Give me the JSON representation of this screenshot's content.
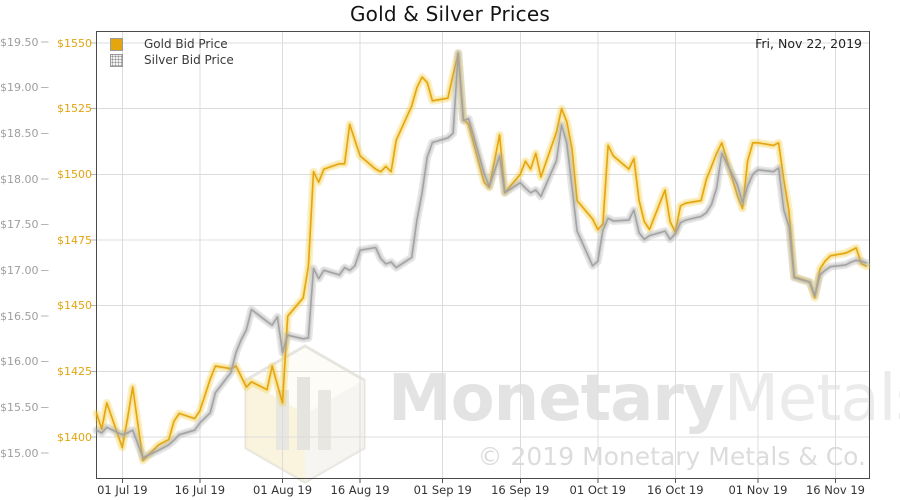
{
  "title": "Gold & Silver Prices",
  "annotation": "Fri, Nov 22, 2019",
  "legend": [
    {
      "label": "Gold Bid Price",
      "color": "#e3a60c",
      "swatch": "solid-gold"
    },
    {
      "label": "Silver Bid Price",
      "color": "#a3a3a3",
      "swatch": "gray-halftone"
    }
  ],
  "watermark": {
    "brand_bold": "Monetary",
    "brand_light": "Metals",
    "registered": "®",
    "copyright": "© 2019 Monetary Metals & Co."
  },
  "colors": {
    "gold_line": "#e5a50f",
    "gold_glow": "rgba(243,205,70,0.30)",
    "silver_line": "#a3a3a3",
    "silver_glow": "rgba(170,170,170,0.28)",
    "grid": "#dcdcdc",
    "border": "#4a4a4a",
    "tick": "#b5b5b5"
  },
  "chart_data": {
    "type": "line",
    "title": "Gold & Silver Prices",
    "grid": true,
    "legend_position": "top-left",
    "x_range": [
      "2019-06-26",
      "2019-11-22"
    ],
    "x_ticks": [
      {
        "date": "2019-07-01",
        "label": "01 Jul 19"
      },
      {
        "date": "2019-07-16",
        "label": "16 Jul 19"
      },
      {
        "date": "2019-08-01",
        "label": "01 Aug 19"
      },
      {
        "date": "2019-08-16",
        "label": "16 Aug 19"
      },
      {
        "date": "2019-09-01",
        "label": "01 Sep 19"
      },
      {
        "date": "2019-09-16",
        "label": "16 Sep 19"
      },
      {
        "date": "2019-10-01",
        "label": "01 Oct 19"
      },
      {
        "date": "2019-10-16",
        "label": "16 Oct 19"
      },
      {
        "date": "2019-11-01",
        "label": "01 Nov 19"
      },
      {
        "date": "2019-11-16",
        "label": "16 Nov 19"
      }
    ],
    "gold_axis": {
      "side": "left-inner",
      "range": [
        1394,
        1553
      ],
      "ticks": [
        {
          "v": 1550,
          "label": "$1550"
        },
        {
          "v": 1525,
          "label": "$1525"
        },
        {
          "v": 1500,
          "label": "$1500"
        },
        {
          "v": 1475,
          "label": "$1475"
        },
        {
          "v": 1450,
          "label": "$1450"
        },
        {
          "v": 1425,
          "label": "$1425"
        },
        {
          "v": 1400,
          "label": "$1400"
        }
      ]
    },
    "silver_axis": {
      "side": "left-outer",
      "range": [
        14.88,
        19.55
      ],
      "ticks": [
        {
          "v": 19.5,
          "label": "$19.50"
        },
        {
          "v": 19.0,
          "label": "$19.00"
        },
        {
          "v": 18.5,
          "label": "$18.50"
        },
        {
          "v": 18.0,
          "label": "$18.00"
        },
        {
          "v": 17.5,
          "label": "$17.50"
        },
        {
          "v": 17.0,
          "label": "$17.00"
        },
        {
          "v": 16.5,
          "label": "$16.50"
        },
        {
          "v": 16.0,
          "label": "$16.00"
        },
        {
          "v": 15.5,
          "label": "$15.50"
        },
        {
          "v": 15.0,
          "label": "$15.00"
        }
      ]
    },
    "series": [
      {
        "name": "Gold Bid Price",
        "axis": "gold",
        "points": [
          [
            "2019-06-26",
            1409
          ],
          [
            "2019-06-27",
            1403
          ],
          [
            "2019-06-28",
            1413
          ],
          [
            "2019-07-01",
            1396
          ],
          [
            "2019-07-02",
            1407
          ],
          [
            "2019-07-03",
            1419
          ],
          [
            "2019-07-05",
            1391
          ],
          [
            "2019-07-08",
            1397
          ],
          [
            "2019-07-10",
            1399
          ],
          [
            "2019-07-11",
            1406
          ],
          [
            "2019-07-12",
            1409
          ],
          [
            "2019-07-15",
            1407
          ],
          [
            "2019-07-16",
            1410
          ],
          [
            "2019-07-18",
            1422
          ],
          [
            "2019-07-19",
            1427
          ],
          [
            "2019-07-22",
            1426
          ],
          [
            "2019-07-23",
            1427
          ],
          [
            "2019-07-25",
            1419
          ],
          [
            "2019-07-26",
            1421
          ],
          [
            "2019-07-29",
            1418
          ],
          [
            "2019-07-30",
            1427
          ],
          [
            "2019-08-01",
            1413
          ],
          [
            "2019-08-02",
            1446
          ],
          [
            "2019-08-05",
            1453
          ],
          [
            "2019-08-06",
            1465
          ],
          [
            "2019-08-07",
            1501
          ],
          [
            "2019-08-08",
            1497
          ],
          [
            "2019-08-09",
            1502
          ],
          [
            "2019-08-12",
            1504
          ],
          [
            "2019-08-13",
            1504
          ],
          [
            "2019-08-14",
            1519
          ],
          [
            "2019-08-15",
            1513
          ],
          [
            "2019-08-16",
            1507
          ],
          [
            "2019-08-19",
            1502
          ],
          [
            "2019-08-20",
            1501
          ],
          [
            "2019-08-21",
            1503
          ],
          [
            "2019-08-22",
            1501
          ],
          [
            "2019-08-23",
            1513
          ],
          [
            "2019-08-26",
            1526
          ],
          [
            "2019-08-27",
            1533
          ],
          [
            "2019-08-28",
            1537
          ],
          [
            "2019-08-29",
            1535
          ],
          [
            "2019-08-30",
            1528
          ],
          [
            "2019-09-02",
            1529
          ],
          [
            "2019-09-03",
            1538
          ],
          [
            "2019-09-04",
            1546
          ],
          [
            "2019-09-05",
            1521
          ],
          [
            "2019-09-06",
            1519
          ],
          [
            "2019-09-09",
            1497
          ],
          [
            "2019-09-10",
            1495
          ],
          [
            "2019-09-12",
            1515
          ],
          [
            "2019-09-13",
            1493
          ],
          [
            "2019-09-16",
            1500
          ],
          [
            "2019-09-17",
            1505
          ],
          [
            "2019-09-18",
            1502
          ],
          [
            "2019-09-19",
            1508
          ],
          [
            "2019-09-20",
            1499
          ],
          [
            "2019-09-23",
            1516
          ],
          [
            "2019-09-24",
            1525
          ],
          [
            "2019-09-25",
            1520
          ],
          [
            "2019-09-26",
            1510
          ],
          [
            "2019-09-27",
            1490
          ],
          [
            "2019-09-30",
            1483
          ],
          [
            "2019-10-01",
            1479
          ],
          [
            "2019-10-02",
            1481
          ],
          [
            "2019-10-03",
            1511
          ],
          [
            "2019-10-04",
            1507
          ],
          [
            "2019-10-07",
            1502
          ],
          [
            "2019-10-08",
            1506
          ],
          [
            "2019-10-09",
            1490
          ],
          [
            "2019-10-10",
            1482
          ],
          [
            "2019-10-11",
            1479
          ],
          [
            "2019-10-14",
            1494
          ],
          [
            "2019-10-15",
            1482
          ],
          [
            "2019-10-16",
            1478
          ],
          [
            "2019-10-17",
            1488
          ],
          [
            "2019-10-18",
            1489
          ],
          [
            "2019-10-21",
            1490
          ],
          [
            "2019-10-22",
            1498
          ],
          [
            "2019-10-23",
            1503
          ],
          [
            "2019-10-24",
            1508
          ],
          [
            "2019-10-25",
            1512
          ],
          [
            "2019-10-28",
            1492
          ],
          [
            "2019-10-29",
            1487
          ],
          [
            "2019-10-30",
            1505
          ],
          [
            "2019-10-31",
            1512
          ],
          [
            "2019-11-01",
            1512
          ],
          [
            "2019-11-04",
            1511
          ],
          [
            "2019-11-05",
            1512
          ],
          [
            "2019-11-06",
            1498
          ],
          [
            "2019-11-07",
            1486
          ],
          [
            "2019-11-08",
            1461
          ],
          [
            "2019-11-11",
            1459
          ],
          [
            "2019-11-12",
            1453
          ],
          [
            "2019-11-13",
            1464
          ],
          [
            "2019-11-14",
            1467
          ],
          [
            "2019-11-15",
            1469
          ],
          [
            "2019-11-18",
            1470
          ],
          [
            "2019-11-19",
            1471
          ],
          [
            "2019-11-20",
            1472
          ],
          [
            "2019-11-21",
            1466
          ],
          [
            "2019-11-22",
            1465
          ]
        ]
      },
      {
        "name": "Silver Bid Price",
        "axis": "silver",
        "points": [
          [
            "2019-06-26",
            15.25
          ],
          [
            "2019-06-27",
            15.22
          ],
          [
            "2019-06-28",
            15.28
          ],
          [
            "2019-07-01",
            15.2
          ],
          [
            "2019-07-02",
            15.22
          ],
          [
            "2019-07-03",
            15.25
          ],
          [
            "2019-07-05",
            14.95
          ],
          [
            "2019-07-08",
            15.03
          ],
          [
            "2019-07-10",
            15.09
          ],
          [
            "2019-07-11",
            15.14
          ],
          [
            "2019-07-12",
            15.2
          ],
          [
            "2019-07-15",
            15.25
          ],
          [
            "2019-07-16",
            15.33
          ],
          [
            "2019-07-18",
            15.44
          ],
          [
            "2019-07-19",
            15.66
          ],
          [
            "2019-07-22",
            15.88
          ],
          [
            "2019-07-23",
            16.1
          ],
          [
            "2019-07-24",
            16.24
          ],
          [
            "2019-07-25",
            16.35
          ],
          [
            "2019-07-26",
            16.57
          ],
          [
            "2019-07-29",
            16.44
          ],
          [
            "2019-07-30",
            16.4
          ],
          [
            "2019-07-31",
            16.49
          ],
          [
            "2019-08-01",
            16.1
          ],
          [
            "2019-08-02",
            16.29
          ],
          [
            "2019-08-05",
            16.25
          ],
          [
            "2019-08-06",
            16.26
          ],
          [
            "2019-08-07",
            17.02
          ],
          [
            "2019-08-08",
            16.91
          ],
          [
            "2019-08-09",
            17.0
          ],
          [
            "2019-08-12",
            16.95
          ],
          [
            "2019-08-13",
            17.03
          ],
          [
            "2019-08-14",
            17.0
          ],
          [
            "2019-08-15",
            17.05
          ],
          [
            "2019-08-16",
            17.22
          ],
          [
            "2019-08-19",
            17.25
          ],
          [
            "2019-08-20",
            17.13
          ],
          [
            "2019-08-21",
            17.07
          ],
          [
            "2019-08-22",
            17.09
          ],
          [
            "2019-08-23",
            17.03
          ],
          [
            "2019-08-26",
            17.14
          ],
          [
            "2019-08-27",
            17.55
          ],
          [
            "2019-08-28",
            17.85
          ],
          [
            "2019-08-29",
            18.24
          ],
          [
            "2019-08-30",
            18.4
          ],
          [
            "2019-09-02",
            18.45
          ],
          [
            "2019-09-03",
            18.5
          ],
          [
            "2019-09-04",
            19.38
          ],
          [
            "2019-09-05",
            18.64
          ],
          [
            "2019-09-06",
            18.66
          ],
          [
            "2019-09-09",
            18.06
          ],
          [
            "2019-09-10",
            17.92
          ],
          [
            "2019-09-12",
            18.25
          ],
          [
            "2019-09-13",
            17.85
          ],
          [
            "2019-09-16",
            17.96
          ],
          [
            "2019-09-17",
            17.9
          ],
          [
            "2019-09-18",
            17.85
          ],
          [
            "2019-09-19",
            17.88
          ],
          [
            "2019-09-20",
            17.81
          ],
          [
            "2019-09-23",
            18.2
          ],
          [
            "2019-09-24",
            18.59
          ],
          [
            "2019-09-25",
            18.39
          ],
          [
            "2019-09-26",
            17.92
          ],
          [
            "2019-09-27",
            17.43
          ],
          [
            "2019-09-30",
            17.05
          ],
          [
            "2019-10-01",
            17.1
          ],
          [
            "2019-10-02",
            17.44
          ],
          [
            "2019-10-03",
            17.57
          ],
          [
            "2019-10-04",
            17.54
          ],
          [
            "2019-10-07",
            17.55
          ],
          [
            "2019-10-08",
            17.66
          ],
          [
            "2019-10-09",
            17.41
          ],
          [
            "2019-10-10",
            17.34
          ],
          [
            "2019-10-11",
            17.38
          ],
          [
            "2019-10-14",
            17.43
          ],
          [
            "2019-10-15",
            17.34
          ],
          [
            "2019-10-16",
            17.4
          ],
          [
            "2019-10-17",
            17.52
          ],
          [
            "2019-10-18",
            17.55
          ],
          [
            "2019-10-21",
            17.59
          ],
          [
            "2019-10-22",
            17.63
          ],
          [
            "2019-10-23",
            17.72
          ],
          [
            "2019-10-24",
            17.9
          ],
          [
            "2019-10-25",
            18.28
          ],
          [
            "2019-10-28",
            17.94
          ],
          [
            "2019-10-29",
            17.74
          ],
          [
            "2019-10-30",
            17.92
          ],
          [
            "2019-10-31",
            18.05
          ],
          [
            "2019-11-01",
            18.1
          ],
          [
            "2019-11-04",
            18.08
          ],
          [
            "2019-11-05",
            18.12
          ],
          [
            "2019-11-06",
            17.66
          ],
          [
            "2019-11-07",
            17.48
          ],
          [
            "2019-11-08",
            16.92
          ],
          [
            "2019-11-11",
            16.87
          ],
          [
            "2019-11-12",
            16.73
          ],
          [
            "2019-11-13",
            16.95
          ],
          [
            "2019-11-14",
            17.0
          ],
          [
            "2019-11-15",
            17.04
          ],
          [
            "2019-11-18",
            17.06
          ],
          [
            "2019-11-19",
            17.09
          ],
          [
            "2019-11-20",
            17.11
          ],
          [
            "2019-11-21",
            17.1
          ],
          [
            "2019-11-22",
            17.08
          ]
        ]
      }
    ]
  }
}
